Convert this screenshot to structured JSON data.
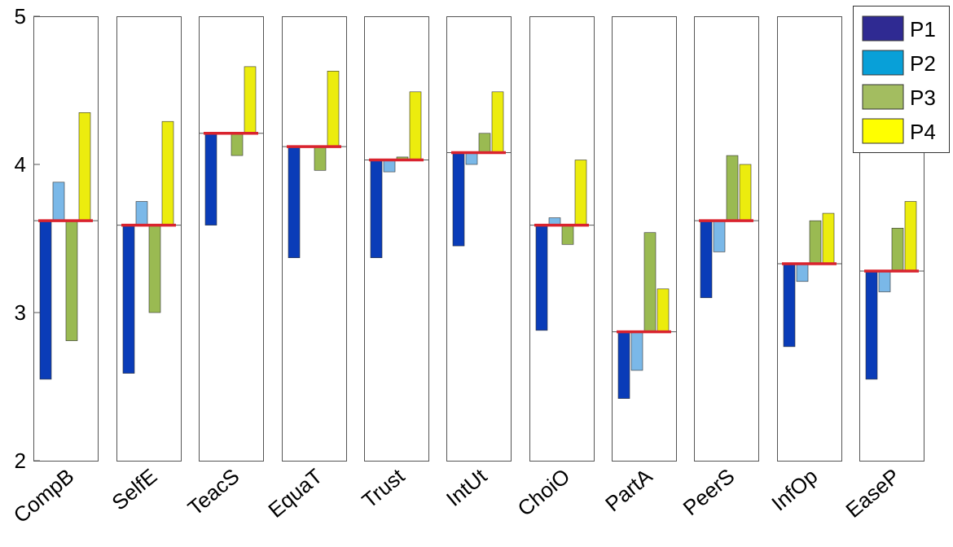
{
  "chart_data": {
    "type": "bar",
    "title": "",
    "xlabel": "",
    "ylabel": "",
    "ylim": [
      2,
      5
    ],
    "yticks": [
      2,
      3,
      4,
      5
    ],
    "categories": [
      "CompB",
      "SelfE",
      "TeacS",
      "EquaT",
      "Trust",
      "IntUt",
      "ChoiO",
      "PartA",
      "PeerS",
      "InfOp",
      "EaseP"
    ],
    "baseline": [
      3.62,
      3.59,
      4.21,
      4.12,
      4.03,
      4.08,
      3.59,
      2.87,
      3.62,
      3.33,
      3.28
    ],
    "series": [
      {
        "name": "P1",
        "color": "#0a3cb8",
        "values": [
          2.55,
          2.59,
          3.59,
          3.37,
          3.37,
          3.45,
          2.88,
          2.42,
          3.1,
          2.77,
          2.55
        ]
      },
      {
        "name": "P2",
        "color": "#7ab8e8",
        "values": [
          3.88,
          3.75,
          4.21,
          4.12,
          3.95,
          4.0,
          3.64,
          2.61,
          3.41,
          3.21,
          3.14
        ]
      },
      {
        "name": "P3",
        "color": "#9aba52",
        "values": [
          2.81,
          3.0,
          4.06,
          3.96,
          4.05,
          4.21,
          3.46,
          3.54,
          4.06,
          3.62,
          3.57
        ]
      },
      {
        "name": "P4",
        "color": "#ecec0e",
        "values": [
          4.35,
          4.29,
          4.66,
          4.63,
          4.49,
          4.49,
          4.03,
          3.16,
          4.0,
          3.67,
          3.75
        ]
      }
    ],
    "legend": {
      "position": "top-right",
      "entries": [
        {
          "label": "P1",
          "color": "#2f2a92"
        },
        {
          "label": "P2",
          "color": "#08a0d8"
        },
        {
          "label": "P3",
          "color": "#a3bd60"
        },
        {
          "label": "P4",
          "color": "#ffff00"
        }
      ]
    },
    "baseline_color": "#d9232e",
    "grid": false
  }
}
